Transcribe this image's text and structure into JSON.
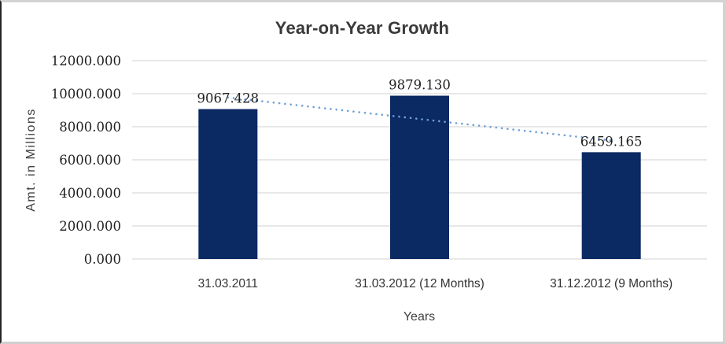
{
  "chart_data": {
    "type": "bar",
    "title": "Year-on-Year Growth",
    "xlabel": "Years",
    "ylabel": "Amt. in Millions",
    "categories": [
      "31.03.2011",
      "31.03.2012 (12 Months)",
      "31.12.2012 (9 Months)"
    ],
    "values": [
      9067.428,
      9879.13,
      6459.165
    ],
    "data_labels": [
      "9067.428",
      "9879.130",
      "6459.165"
    ],
    "ylim": [
      0,
      12000
    ],
    "ytick_step": 2000,
    "ytick_labels": [
      "0.000",
      "2000.000",
      "4000.000",
      "6000.000",
      "8000.000",
      "10000.000",
      "12000.000"
    ],
    "grid": true,
    "legend": "none",
    "bar_color": "#0b2963",
    "gridline_color": "#d9d9d9",
    "axis_text_color": "#1f1f1f",
    "xtick_text_color": "#333333",
    "trendline": {
      "type": "linear",
      "style": "dotted",
      "color": "#6fa0d6",
      "start_value": 9772.7,
      "end_value": 7164.4
    }
  }
}
